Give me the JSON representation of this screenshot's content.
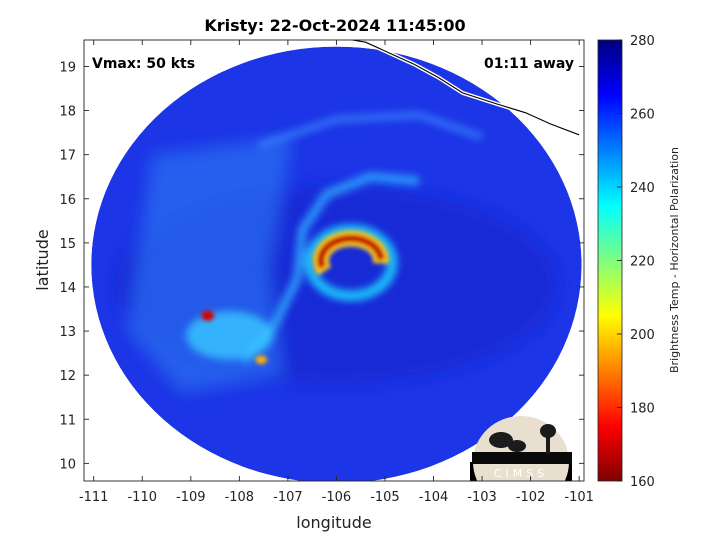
{
  "chart_data": {
    "type": "heatmap",
    "title": "Kristy: 22-Oct-2024 11:45:00",
    "xlabel": "longitude",
    "ylabel": "latitude",
    "xlim": [
      -111.2,
      -100.9
    ],
    "ylim": [
      9.6,
      19.6
    ],
    "x_ticks": [
      -111,
      -110,
      -109,
      -108,
      -107,
      -106,
      -105,
      -104,
      -103,
      -102,
      -101
    ],
    "x_tick_labels": [
      "-111",
      "-110",
      "-109",
      "-108",
      "-107",
      "-106",
      "-105",
      "-104",
      "-103",
      "-102",
      "-101"
    ],
    "y_ticks": [
      10,
      11,
      12,
      13,
      14,
      15,
      16,
      17,
      18,
      19
    ],
    "y_tick_labels": [
      "10",
      "11",
      "12",
      "13",
      "14",
      "15",
      "16",
      "17",
      "18",
      "19"
    ],
    "annotations": [
      {
        "text": "Vmax: 50 kts",
        "position": "top-left"
      },
      {
        "text": "01:11 away",
        "position": "top-right"
      }
    ],
    "colorbar": {
      "label": "Brightness Temp - Horizontal Polarization",
      "range": [
        160,
        280
      ],
      "ticks": [
        160,
        180,
        200,
        220,
        240,
        260,
        280
      ],
      "tick_labels": [
        "160",
        "180",
        "200",
        "220",
        "240",
        "260",
        "280"
      ],
      "colormap": "jet"
    },
    "scan_disk": {
      "center_lon": -106.0,
      "center_lat": 14.5,
      "radius_lon": 5.05,
      "radius_lat": 4.95,
      "background_tb": 262
    },
    "features": [
      {
        "name": "eyewall-cold-arc",
        "lon": -105.7,
        "lat": 14.15,
        "tb_min": 168
      },
      {
        "name": "convective-cell-west",
        "lon": -108.65,
        "lat": 13.35,
        "tb_min": 175
      },
      {
        "name": "convective-cell-south",
        "lon": -107.55,
        "lat": 12.35,
        "tb_min": 195
      },
      {
        "name": "eye",
        "lon": -105.7,
        "lat": 14.55,
        "tb_min": 240
      }
    ],
    "grid": false
  },
  "logo": {
    "text": "CIMSS"
  },
  "colors": {
    "coast": "#000000",
    "coast_halo": "#ffffff",
    "background": "#ffffff"
  }
}
